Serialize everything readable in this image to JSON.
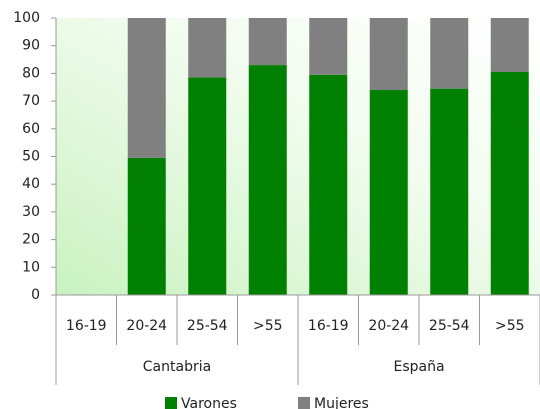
{
  "chart_data": {
    "type": "stacked_bar",
    "groups": [
      "Cantabria",
      "España"
    ],
    "categories": [
      "16-19",
      "20-24",
      "25-54",
      ">55",
      "16-19",
      "20-24",
      "25-54",
      ">55"
    ],
    "series": [
      {
        "name": "Varones",
        "color": "#008000",
        "values": [
          null,
          49.5,
          78.5,
          83,
          79.5,
          74,
          74.5,
          80.5
        ]
      },
      {
        "name": "Mujeres",
        "color": "#808080",
        "values": [
          null,
          50.5,
          21.5,
          17,
          20.5,
          26,
          25.5,
          19.5
        ]
      }
    ],
    "ylim": [
      0,
      100
    ],
    "yticks": [
      0,
      10,
      20,
      30,
      40,
      50,
      60,
      70,
      80,
      90,
      100
    ],
    "legend": "bottom"
  }
}
